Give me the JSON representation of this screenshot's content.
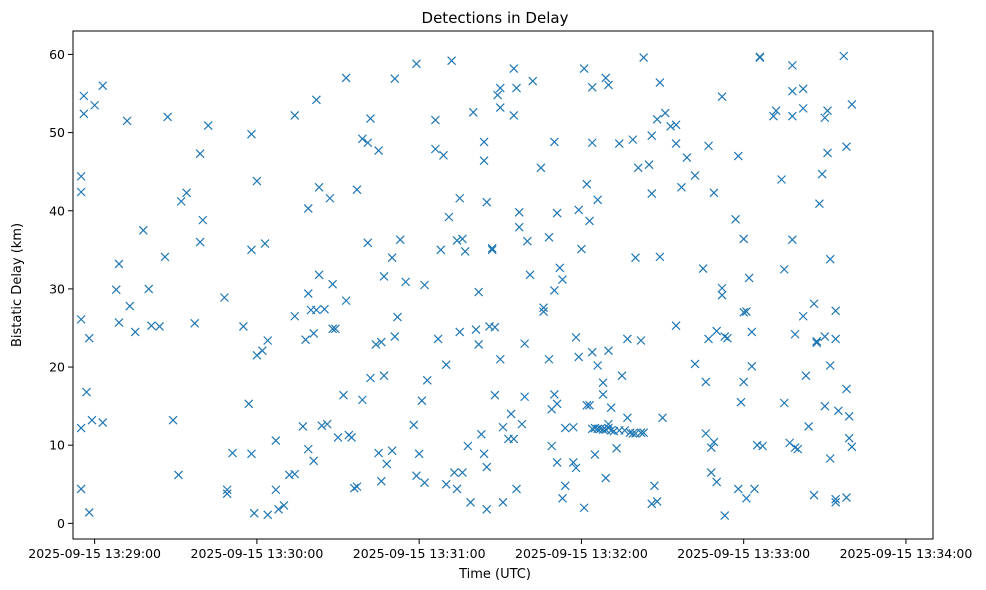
{
  "chart_data": {
    "type": "scatter",
    "title": "Detections in Delay",
    "xlabel": "Time (UTC)",
    "ylabel": "Bistatic Delay (km)",
    "marker": "x",
    "color": "#1f77b4",
    "grid": false,
    "legend": "none",
    "xlim": [
      "2025-09-15 13:28:52",
      "2025-09-15 13:34:10"
    ],
    "ylim": [
      -2,
      63
    ],
    "x_ticks": [
      "2025-09-15 13:29:00",
      "2025-09-15 13:30:00",
      "2025-09-15 13:31:00",
      "2025-09-15 13:32:00",
      "2025-09-15 13:33:00",
      "2025-09-15 13:34:00"
    ],
    "y_ticks": [
      "0",
      "10",
      "20",
      "30",
      "40",
      "50",
      "60"
    ],
    "points_x_seconds_after": "2025-09-15 13:28:00",
    "points": [
      [
        55,
        4.4
      ],
      [
        55,
        12.2
      ],
      [
        55,
        26.1
      ],
      [
        55,
        42.4
      ],
      [
        55,
        44.4
      ],
      [
        56,
        52.4
      ],
      [
        56,
        54.7
      ],
      [
        57,
        16.8
      ],
      [
        58,
        23.7
      ],
      [
        58,
        1.4
      ],
      [
        59,
        13.2
      ],
      [
        60,
        53.5
      ],
      [
        63,
        12.9
      ],
      [
        63,
        56.0
      ],
      [
        68,
        29.9
      ],
      [
        69,
        33.2
      ],
      [
        69,
        25.7
      ],
      [
        72,
        51.5
      ],
      [
        73,
        27.8
      ],
      [
        75,
        24.5
      ],
      [
        78,
        37.5
      ],
      [
        80,
        30.0
      ],
      [
        81,
        25.3
      ],
      [
        84,
        25.2
      ],
      [
        86,
        34.1
      ],
      [
        87,
        52.0
      ],
      [
        89,
        13.2
      ],
      [
        91,
        6.2
      ],
      [
        92,
        41.2
      ],
      [
        94,
        42.3
      ],
      [
        97,
        25.6
      ],
      [
        99,
        47.3
      ],
      [
        99,
        36.0
      ],
      [
        100,
        38.8
      ],
      [
        102,
        50.9
      ],
      [
        108,
        28.9
      ],
      [
        109,
        4.3
      ],
      [
        109,
        3.8
      ],
      [
        111,
        9.0
      ],
      [
        115,
        25.2
      ],
      [
        117,
        15.3
      ],
      [
        118,
        8.9
      ],
      [
        118,
        35.0
      ],
      [
        118,
        49.8
      ],
      [
        119,
        1.3
      ],
      [
        120,
        43.8
      ],
      [
        120,
        21.5
      ],
      [
        122,
        22.1
      ],
      [
        123,
        35.8
      ],
      [
        124,
        23.4
      ],
      [
        124,
        1.1
      ],
      [
        127,
        10.6
      ],
      [
        127,
        4.3
      ],
      [
        128,
        1.8
      ],
      [
        130,
        2.3
      ],
      [
        132,
        6.2
      ],
      [
        134,
        6.3
      ],
      [
        134,
        26.5
      ],
      [
        134,
        52.2
      ],
      [
        137,
        12.4
      ],
      [
        138,
        23.5
      ],
      [
        139,
        9.5
      ],
      [
        139,
        40.3
      ],
      [
        139,
        29.4
      ],
      [
        140,
        27.3
      ],
      [
        141,
        8.0
      ],
      [
        141,
        24.3
      ],
      [
        142,
        27.3
      ],
      [
        142,
        54.2
      ],
      [
        143,
        31.8
      ],
      [
        143,
        43.0
      ],
      [
        144,
        12.5
      ],
      [
        145,
        27.4
      ],
      [
        146,
        12.7
      ],
      [
        147,
        41.6
      ],
      [
        148,
        24.9
      ],
      [
        148,
        30.6
      ],
      [
        149,
        24.9
      ],
      [
        150,
        11.0
      ],
      [
        152,
        16.4
      ],
      [
        153,
        28.5
      ],
      [
        153,
        57.0
      ],
      [
        154,
        11.3
      ],
      [
        155,
        11.0
      ],
      [
        156,
        4.5
      ],
      [
        157,
        4.7
      ],
      [
        157,
        42.7
      ],
      [
        159,
        15.8
      ],
      [
        159,
        49.2
      ],
      [
        161,
        35.9
      ],
      [
        161,
        48.7
      ],
      [
        162,
        18.6
      ],
      [
        162,
        51.8
      ],
      [
        164,
        22.9
      ],
      [
        165,
        47.7
      ],
      [
        165,
        9.0
      ],
      [
        166,
        23.2
      ],
      [
        166,
        5.4
      ],
      [
        167,
        18.9
      ],
      [
        167,
        31.6
      ],
      [
        168,
        7.6
      ],
      [
        170,
        9.3
      ],
      [
        170,
        34.0
      ],
      [
        171,
        56.9
      ],
      [
        171,
        23.9
      ],
      [
        172,
        26.4
      ],
      [
        173,
        36.3
      ],
      [
        175,
        30.9
      ],
      [
        178,
        12.6
      ],
      [
        179,
        6.1
      ],
      [
        179,
        58.8
      ],
      [
        180,
        8.9
      ],
      [
        181,
        15.7
      ],
      [
        182,
        5.2
      ],
      [
        182,
        30.5
      ],
      [
        183,
        18.3
      ],
      [
        186,
        51.6
      ],
      [
        186,
        47.9
      ],
      [
        187,
        23.6
      ],
      [
        188,
        35.0
      ],
      [
        189,
        47.1
      ],
      [
        190,
        5.0
      ],
      [
        190,
        20.3
      ],
      [
        191,
        39.2
      ],
      [
        192,
        59.2
      ],
      [
        193,
        6.5
      ],
      [
        194,
        4.4
      ],
      [
        194,
        36.2
      ],
      [
        195,
        41.6
      ],
      [
        195,
        24.5
      ],
      [
        196,
        6.5
      ],
      [
        196,
        36.4
      ],
      [
        197,
        34.8
      ],
      [
        198,
        9.9
      ],
      [
        199,
        2.7
      ],
      [
        200,
        52.6
      ],
      [
        201,
        24.8
      ],
      [
        202,
        22.9
      ],
      [
        202,
        29.6
      ],
      [
        203,
        11.4
      ],
      [
        204,
        8.9
      ],
      [
        204,
        46.4
      ],
      [
        204,
        48.8
      ],
      [
        205,
        7.2
      ],
      [
        205,
        41.1
      ],
      [
        205,
        1.8
      ],
      [
        206,
        25.2
      ],
      [
        207,
        35.2
      ],
      [
        207,
        35.0
      ],
      [
        208,
        25.1
      ],
      [
        208,
        16.4
      ],
      [
        209,
        54.8
      ],
      [
        210,
        55.7
      ],
      [
        210,
        53.2
      ],
      [
        210,
        21.0
      ],
      [
        211,
        2.7
      ],
      [
        211,
        12.3
      ],
      [
        213,
        10.8
      ],
      [
        214,
        14.0
      ],
      [
        215,
        10.8
      ],
      [
        215,
        52.2
      ],
      [
        215,
        58.2
      ],
      [
        216,
        55.7
      ],
      [
        216,
        4.4
      ],
      [
        217,
        39.8
      ],
      [
        217,
        37.9
      ],
      [
        218,
        12.7
      ],
      [
        219,
        23.0
      ],
      [
        219,
        16.2
      ],
      [
        220,
        36.1
      ],
      [
        221,
        31.8
      ],
      [
        222,
        56.6
      ],
      [
        225,
        45.5
      ],
      [
        226,
        27.6
      ],
      [
        226,
        27.1
      ],
      [
        228,
        21.0
      ],
      [
        228,
        36.6
      ],
      [
        229,
        14.6
      ],
      [
        229,
        9.9
      ],
      [
        230,
        29.8
      ],
      [
        230,
        48.8
      ],
      [
        230,
        16.5
      ],
      [
        231,
        7.8
      ],
      [
        231,
        15.3
      ],
      [
        231,
        39.7
      ],
      [
        232,
        32.7
      ],
      [
        233,
        31.2
      ],
      [
        233,
        3.2
      ],
      [
        234,
        4.8
      ],
      [
        234,
        12.2
      ],
      [
        237,
        12.3
      ],
      [
        237,
        7.8
      ],
      [
        238,
        7.1
      ],
      [
        238,
        23.8
      ],
      [
        239,
        40.1
      ],
      [
        239,
        21.3
      ],
      [
        240,
        35.1
      ],
      [
        241,
        58.2
      ],
      [
        241,
        2.0
      ],
      [
        242,
        15.1
      ],
      [
        242,
        43.4
      ],
      [
        243,
        15.1
      ],
      [
        243,
        38.7
      ],
      [
        244,
        12.1
      ],
      [
        244,
        21.9
      ],
      [
        244,
        55.8
      ],
      [
        244,
        48.7
      ],
      [
        245,
        12.2
      ],
      [
        245,
        8.8
      ],
      [
        246,
        12.1
      ],
      [
        246,
        20.2
      ],
      [
        246,
        41.4
      ],
      [
        247,
        12.1
      ],
      [
        248,
        12.0
      ],
      [
        248,
        18.0
      ],
      [
        248,
        16.5
      ],
      [
        249,
        12.0
      ],
      [
        249,
        5.8
      ],
      [
        249,
        57.0
      ],
      [
        250,
        56.1
      ],
      [
        250,
        22.1
      ],
      [
        250,
        12.2
      ],
      [
        250,
        12.7
      ],
      [
        251,
        11.9
      ],
      [
        251,
        14.8
      ],
      [
        252,
        11.8
      ],
      [
        253,
        9.6
      ],
      [
        254,
        11.9
      ],
      [
        254,
        48.6
      ],
      [
        255,
        18.9
      ],
      [
        256,
        11.9
      ],
      [
        257,
        23.6
      ],
      [
        257,
        13.5
      ],
      [
        258,
        11.6
      ],
      [
        259,
        11.5
      ],
      [
        259,
        49.1
      ],
      [
        260,
        34.0
      ],
      [
        260,
        11.5
      ],
      [
        261,
        45.5
      ],
      [
        262,
        11.6
      ],
      [
        262,
        23.4
      ],
      [
        263,
        59.6
      ],
      [
        263,
        11.6
      ],
      [
        265,
        45.9
      ],
      [
        266,
        2.5
      ],
      [
        266,
        49.6
      ],
      [
        266,
        42.2
      ],
      [
        267,
        4.8
      ],
      [
        268,
        2.8
      ],
      [
        268,
        51.7
      ],
      [
        269,
        34.1
      ],
      [
        269,
        56.4
      ],
      [
        270,
        13.5
      ],
      [
        271,
        52.5
      ],
      [
        273,
        50.8
      ],
      [
        275,
        48.6
      ],
      [
        275,
        51.0
      ],
      [
        275,
        25.3
      ],
      [
        277,
        43.0
      ],
      [
        279,
        46.8
      ],
      [
        282,
        20.4
      ],
      [
        282,
        44.5
      ],
      [
        285,
        32.6
      ],
      [
        286,
        18.1
      ],
      [
        286,
        11.5
      ],
      [
        287,
        48.3
      ],
      [
        287,
        23.6
      ],
      [
        288,
        9.7
      ],
      [
        288,
        6.5
      ],
      [
        289,
        42.3
      ],
      [
        289,
        10.4
      ],
      [
        290,
        5.3
      ],
      [
        290,
        24.6
      ],
      [
        292,
        29.2
      ],
      [
        292,
        30.1
      ],
      [
        292,
        54.6
      ],
      [
        293,
        1.0
      ],
      [
        293,
        23.9
      ],
      [
        294,
        23.7
      ],
      [
        297,
        38.9
      ],
      [
        298,
        47.0
      ],
      [
        298,
        4.4
      ],
      [
        299,
        15.5
      ],
      [
        300,
        18.1
      ],
      [
        300,
        27.0
      ],
      [
        300,
        36.4
      ],
      [
        301,
        27.1
      ],
      [
        301,
        3.2
      ],
      [
        302,
        31.4
      ],
      [
        303,
        20.1
      ],
      [
        303,
        24.5
      ],
      [
        304,
        4.4
      ],
      [
        305,
        10.0
      ],
      [
        306,
        59.6
      ],
      [
        306,
        59.7
      ],
      [
        307,
        9.9
      ],
      [
        311,
        52.1
      ],
      [
        312,
        52.8
      ],
      [
        314,
        44.0
      ],
      [
        315,
        15.4
      ],
      [
        315,
        32.5
      ],
      [
        317,
        10.3
      ],
      [
        318,
        55.3
      ],
      [
        318,
        36.3
      ],
      [
        318,
        58.6
      ],
      [
        318,
        52.1
      ],
      [
        319,
        24.2
      ],
      [
        319,
        9.7
      ],
      [
        320,
        9.5
      ],
      [
        322,
        26.5
      ],
      [
        322,
        55.6
      ],
      [
        322,
        53.1
      ],
      [
        323,
        18.9
      ],
      [
        324,
        12.4
      ],
      [
        326,
        3.6
      ],
      [
        326,
        28.1
      ],
      [
        327,
        23.3
      ],
      [
        327,
        23.1
      ],
      [
        328,
        40.9
      ],
      [
        329,
        44.7
      ],
      [
        330,
        51.9
      ],
      [
        330,
        23.9
      ],
      [
        330,
        15.0
      ],
      [
        331,
        52.8
      ],
      [
        331,
        47.4
      ],
      [
        332,
        33.8
      ],
      [
        332,
        20.2
      ],
      [
        332,
        8.3
      ],
      [
        334,
        27.2
      ],
      [
        334,
        23.6
      ],
      [
        334,
        3.1
      ],
      [
        334,
        2.7
      ],
      [
        335,
        14.4
      ],
      [
        337,
        59.8
      ],
      [
        338,
        48.2
      ],
      [
        338,
        17.2
      ],
      [
        338,
        3.3
      ],
      [
        339,
        13.7
      ],
      [
        339,
        10.9
      ],
      [
        340,
        9.8
      ],
      [
        340,
        53.6
      ]
    ]
  }
}
